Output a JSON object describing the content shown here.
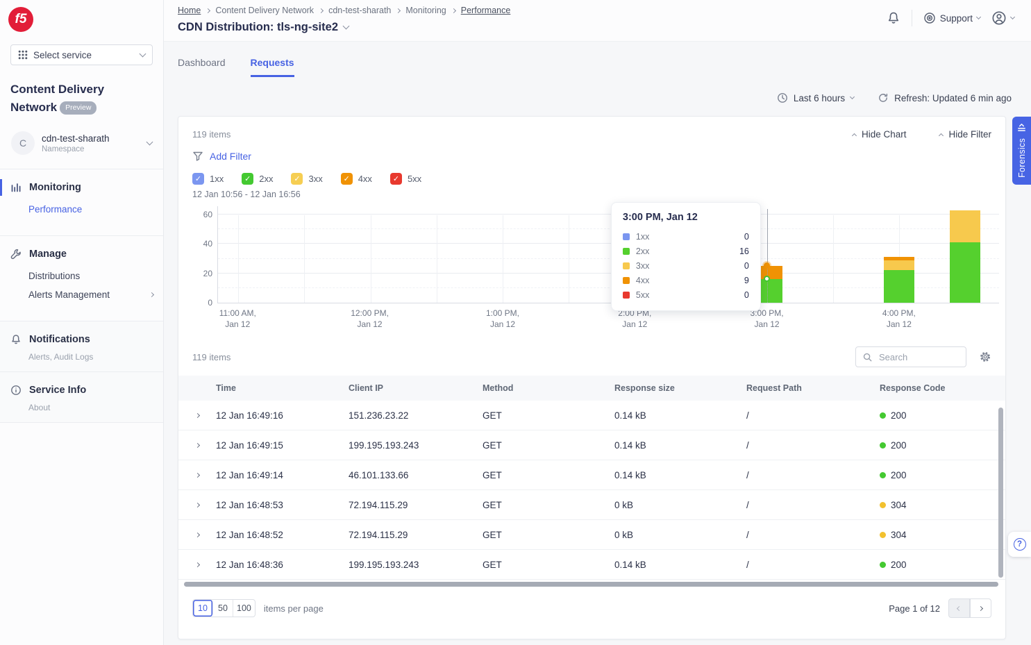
{
  "accent_color": "#4762e3",
  "header": {
    "breadcrumb": [
      "Home",
      "Content Delivery Network",
      "cdn-test-sharath",
      "Monitoring",
      "Performance"
    ],
    "title": "CDN Distribution: tls-ng-site2",
    "support_label": "Support"
  },
  "sidebar": {
    "logo_text": "f5",
    "service_selector_label": "Select service",
    "product_title": "Content Delivery Network",
    "badge": "Preview",
    "namespace": {
      "initial": "C",
      "name": "cdn-test-sharath",
      "type": "Namespace"
    },
    "nav": [
      {
        "label": "Monitoring",
        "icon": "bar-chart-icon",
        "active": true,
        "children": [
          {
            "label": "Performance",
            "active": true
          }
        ]
      },
      {
        "label": "Manage",
        "icon": "wrench-icon",
        "children": [
          {
            "label": "Distributions"
          },
          {
            "label": "Alerts Management",
            "chevron": true
          }
        ]
      },
      {
        "label": "Notifications",
        "icon": "bell-icon",
        "sublabel": "Alerts, Audit Logs"
      },
      {
        "label": "Service Info",
        "icon": "info-icon",
        "sublabel": "About"
      }
    ]
  },
  "tabs": [
    {
      "label": "Dashboard",
      "active": false
    },
    {
      "label": "Requests",
      "active": true
    }
  ],
  "toolbar": {
    "time_range": "Last 6 hours",
    "refresh": "Refresh: Updated 6 min ago"
  },
  "chart_card": {
    "items_count": "119 items",
    "hide_chart_label": "Hide Chart",
    "hide_filter_label": "Hide Filter",
    "add_filter_label": "Add Filter",
    "legend": [
      {
        "label": "1xx",
        "color": "#7b96f0",
        "checked": true
      },
      {
        "label": "2xx",
        "color": "#44c931",
        "checked": true
      },
      {
        "label": "3xx",
        "color": "#f6ce52",
        "checked": true
      },
      {
        "label": "4xx",
        "color": "#f09204",
        "checked": true
      },
      {
        "label": "5xx",
        "color": "#e8392e",
        "checked": true
      }
    ],
    "date_range": "12 Jan 10:56 - 12 Jan 16:56"
  },
  "chart_data": {
    "type": "bar",
    "stacked": true,
    "ylim": [
      0,
      60
    ],
    "yticks": [
      0,
      20,
      40,
      60
    ],
    "grid": true,
    "legend_position": "top-checkboxes",
    "series_colors": {
      "1xx": "#7b96f0",
      "2xx": "#55d02e",
      "3xx": "#f7c94d",
      "4xx": "#f09204",
      "5xx": "#e8392e"
    },
    "xticks": [
      {
        "label": "11:00 AM, Jan 12",
        "pos": 0.026
      },
      {
        "label": "12:00 PM, Jan 12",
        "pos": 0.195
      },
      {
        "label": "1:00 PM, Jan 12",
        "pos": 0.365
      },
      {
        "label": "2:00 PM, Jan 12",
        "pos": 0.534
      },
      {
        "label": "3:00 PM, Jan 12",
        "pos": 0.703
      },
      {
        "label": "4:00 PM, Jan 12",
        "pos": 0.872
      }
    ],
    "bars": [
      {
        "time": "3:00 PM, Jan 12",
        "pos": 0.703,
        "values": {
          "1xx": 0,
          "2xx": 16,
          "3xx": 0,
          "4xx": 9,
          "5xx": 0
        }
      },
      {
        "time": "4:00 PM, Jan 12",
        "pos": 0.872,
        "values": {
          "1xx": 0,
          "2xx": 22,
          "3xx": 7,
          "4xx": 2,
          "5xx": 0
        }
      },
      {
        "time": "4:30 PM, Jan 12",
        "pos": 0.956,
        "values": {
          "1xx": 0,
          "2xx": 41,
          "3xx": 22,
          "4xx": 0,
          "5xx": 0
        }
      }
    ],
    "tooltip": {
      "title": "3:00 PM, Jan 12",
      "rows": [
        [
          "1xx",
          0
        ],
        [
          "2xx",
          16
        ],
        [
          "3xx",
          0
        ],
        [
          "4xx",
          9
        ],
        [
          "5xx",
          0
        ]
      ],
      "hover_pos": 0.703,
      "dots": [
        {
          "value": 25,
          "color": "#f09204",
          "filled": true
        },
        {
          "value": 16,
          "color": "#44c931",
          "filled": false
        }
      ]
    }
  },
  "table": {
    "items_count": "119 items",
    "search_placeholder": "Search",
    "columns": [
      "Time",
      "Client IP",
      "Method",
      "Response size",
      "Request Path",
      "Response Code"
    ],
    "rows": [
      {
        "time": "12 Jan 16:49:16",
        "client_ip": "151.236.23.22",
        "method": "GET",
        "response_size": "0.14 kB",
        "request_path": "/",
        "response_code": "200",
        "code_color": "#44c931"
      },
      {
        "time": "12 Jan 16:49:15",
        "client_ip": "199.195.193.243",
        "method": "GET",
        "response_size": "0.14 kB",
        "request_path": "/",
        "response_code": "200",
        "code_color": "#44c931"
      },
      {
        "time": "12 Jan 16:49:14",
        "client_ip": "46.101.133.66",
        "method": "GET",
        "response_size": "0.14 kB",
        "request_path": "/",
        "response_code": "200",
        "code_color": "#44c931"
      },
      {
        "time": "12 Jan 16:48:53",
        "client_ip": "72.194.115.29",
        "method": "GET",
        "response_size": "0 kB",
        "request_path": "/",
        "response_code": "304",
        "code_color": "#f2c12e"
      },
      {
        "time": "12 Jan 16:48:52",
        "client_ip": "72.194.115.29",
        "method": "GET",
        "response_size": "0 kB",
        "request_path": "/",
        "response_code": "304",
        "code_color": "#f2c12e"
      },
      {
        "time": "12 Jan 16:48:36",
        "client_ip": "199.195.193.243",
        "method": "GET",
        "response_size": "0.14 kB",
        "request_path": "/",
        "response_code": "200",
        "code_color": "#44c931"
      }
    ],
    "pagination": {
      "page_sizes": [
        "10",
        "50",
        "100"
      ],
      "selected_size": "10",
      "label": "items per page",
      "page_info": "Page 1 of 12"
    }
  },
  "forensics_label": "Forensics"
}
